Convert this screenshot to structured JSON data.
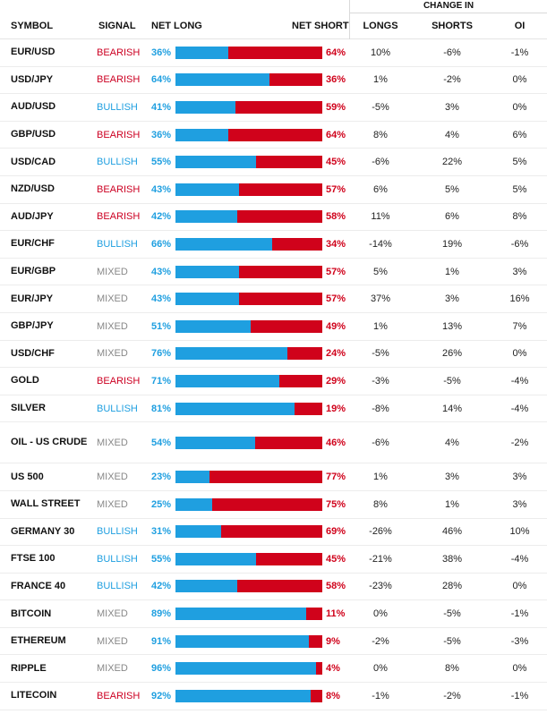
{
  "header": {
    "change_in": "CHANGE IN",
    "symbol": "SYMBOL",
    "signal": "SIGNAL",
    "net_long": "NET LONG",
    "net_short": "NET SHORT",
    "longs": "LONGS",
    "shorts": "SHORTS",
    "oi": "OI"
  },
  "colors": {
    "long": "#1f9fe0",
    "short": "#d0021b",
    "mixed": "#888888"
  },
  "rows": [
    {
      "symbol": "EUR/USD",
      "signal": "BEARISH",
      "net_long": "36%",
      "net_short": "64%",
      "long_pct": 36,
      "longs": "10%",
      "shorts": "-6%",
      "oi": "-1%"
    },
    {
      "symbol": "USD/JPY",
      "signal": "BEARISH",
      "net_long": "64%",
      "net_short": "36%",
      "long_pct": 64,
      "longs": "1%",
      "shorts": "-2%",
      "oi": "0%"
    },
    {
      "symbol": "AUD/USD",
      "signal": "BULLISH",
      "net_long": "41%",
      "net_short": "59%",
      "long_pct": 41,
      "longs": "-5%",
      "shorts": "3%",
      "oi": "0%"
    },
    {
      "symbol": "GBP/USD",
      "signal": "BEARISH",
      "net_long": "36%",
      "net_short": "64%",
      "long_pct": 36,
      "longs": "8%",
      "shorts": "4%",
      "oi": "6%"
    },
    {
      "symbol": "USD/CAD",
      "signal": "BULLISH",
      "net_long": "55%",
      "net_short": "45%",
      "long_pct": 55,
      "longs": "-6%",
      "shorts": "22%",
      "oi": "5%"
    },
    {
      "symbol": "NZD/USD",
      "signal": "BEARISH",
      "net_long": "43%",
      "net_short": "57%",
      "long_pct": 43,
      "longs": "6%",
      "shorts": "5%",
      "oi": "5%"
    },
    {
      "symbol": "AUD/JPY",
      "signal": "BEARISH",
      "net_long": "42%",
      "net_short": "58%",
      "long_pct": 42,
      "longs": "11%",
      "shorts": "6%",
      "oi": "8%"
    },
    {
      "symbol": "EUR/CHF",
      "signal": "BULLISH",
      "net_long": "66%",
      "net_short": "34%",
      "long_pct": 66,
      "longs": "-14%",
      "shorts": "19%",
      "oi": "-6%"
    },
    {
      "symbol": "EUR/GBP",
      "signal": "MIXED",
      "net_long": "43%",
      "net_short": "57%",
      "long_pct": 43,
      "longs": "5%",
      "shorts": "1%",
      "oi": "3%"
    },
    {
      "symbol": "EUR/JPY",
      "signal": "MIXED",
      "net_long": "43%",
      "net_short": "57%",
      "long_pct": 43,
      "longs": "37%",
      "shorts": "3%",
      "oi": "16%"
    },
    {
      "symbol": "GBP/JPY",
      "signal": "MIXED",
      "net_long": "51%",
      "net_short": "49%",
      "long_pct": 51,
      "longs": "1%",
      "shorts": "13%",
      "oi": "7%"
    },
    {
      "symbol": "USD/CHF",
      "signal": "MIXED",
      "net_long": "76%",
      "net_short": "24%",
      "long_pct": 76,
      "longs": "-5%",
      "shorts": "26%",
      "oi": "0%"
    },
    {
      "symbol": "GOLD",
      "signal": "BEARISH",
      "net_long": "71%",
      "net_short": "29%",
      "long_pct": 71,
      "longs": "-3%",
      "shorts": "-5%",
      "oi": "-4%"
    },
    {
      "symbol": "SILVER",
      "signal": "BULLISH",
      "net_long": "81%",
      "net_short": "19%",
      "long_pct": 81,
      "longs": "-8%",
      "shorts": "14%",
      "oi": "-4%"
    },
    {
      "symbol": "OIL - US CRUDE",
      "signal": "MIXED",
      "net_long": "54%",
      "net_short": "46%",
      "long_pct": 54,
      "longs": "-6%",
      "shorts": "4%",
      "oi": "-2%",
      "tall": true
    },
    {
      "symbol": "US 500",
      "signal": "MIXED",
      "net_long": "23%",
      "net_short": "77%",
      "long_pct": 23,
      "longs": "1%",
      "shorts": "3%",
      "oi": "3%"
    },
    {
      "symbol": "WALL STREET",
      "signal": "MIXED",
      "net_long": "25%",
      "net_short": "75%",
      "long_pct": 25,
      "longs": "8%",
      "shorts": "1%",
      "oi": "3%"
    },
    {
      "symbol": "GERMANY 30",
      "signal": "BULLISH",
      "net_long": "31%",
      "net_short": "69%",
      "long_pct": 31,
      "longs": "-26%",
      "shorts": "46%",
      "oi": "10%"
    },
    {
      "symbol": "FTSE 100",
      "signal": "BULLISH",
      "net_long": "55%",
      "net_short": "45%",
      "long_pct": 55,
      "longs": "-21%",
      "shorts": "38%",
      "oi": "-4%"
    },
    {
      "symbol": "FRANCE 40",
      "signal": "BULLISH",
      "net_long": "42%",
      "net_short": "58%",
      "long_pct": 42,
      "longs": "-23%",
      "shorts": "28%",
      "oi": "0%"
    },
    {
      "symbol": "BITCOIN",
      "signal": "MIXED",
      "net_long": "89%",
      "net_short": "11%",
      "long_pct": 89,
      "longs": "0%",
      "shorts": "-5%",
      "oi": "-1%"
    },
    {
      "symbol": "ETHEREUM",
      "signal": "MIXED",
      "net_long": "91%",
      "net_short": "9%",
      "long_pct": 91,
      "longs": "-2%",
      "shorts": "-5%",
      "oi": "-3%"
    },
    {
      "symbol": "RIPPLE",
      "signal": "MIXED",
      "net_long": "96%",
      "net_short": "4%",
      "long_pct": 96,
      "longs": "0%",
      "shorts": "8%",
      "oi": "0%"
    },
    {
      "symbol": "LITECOIN",
      "signal": "BEARISH",
      "net_long": "92%",
      "net_short": "8%",
      "long_pct": 92,
      "longs": "-1%",
      "shorts": "-2%",
      "oi": "-1%"
    }
  ]
}
